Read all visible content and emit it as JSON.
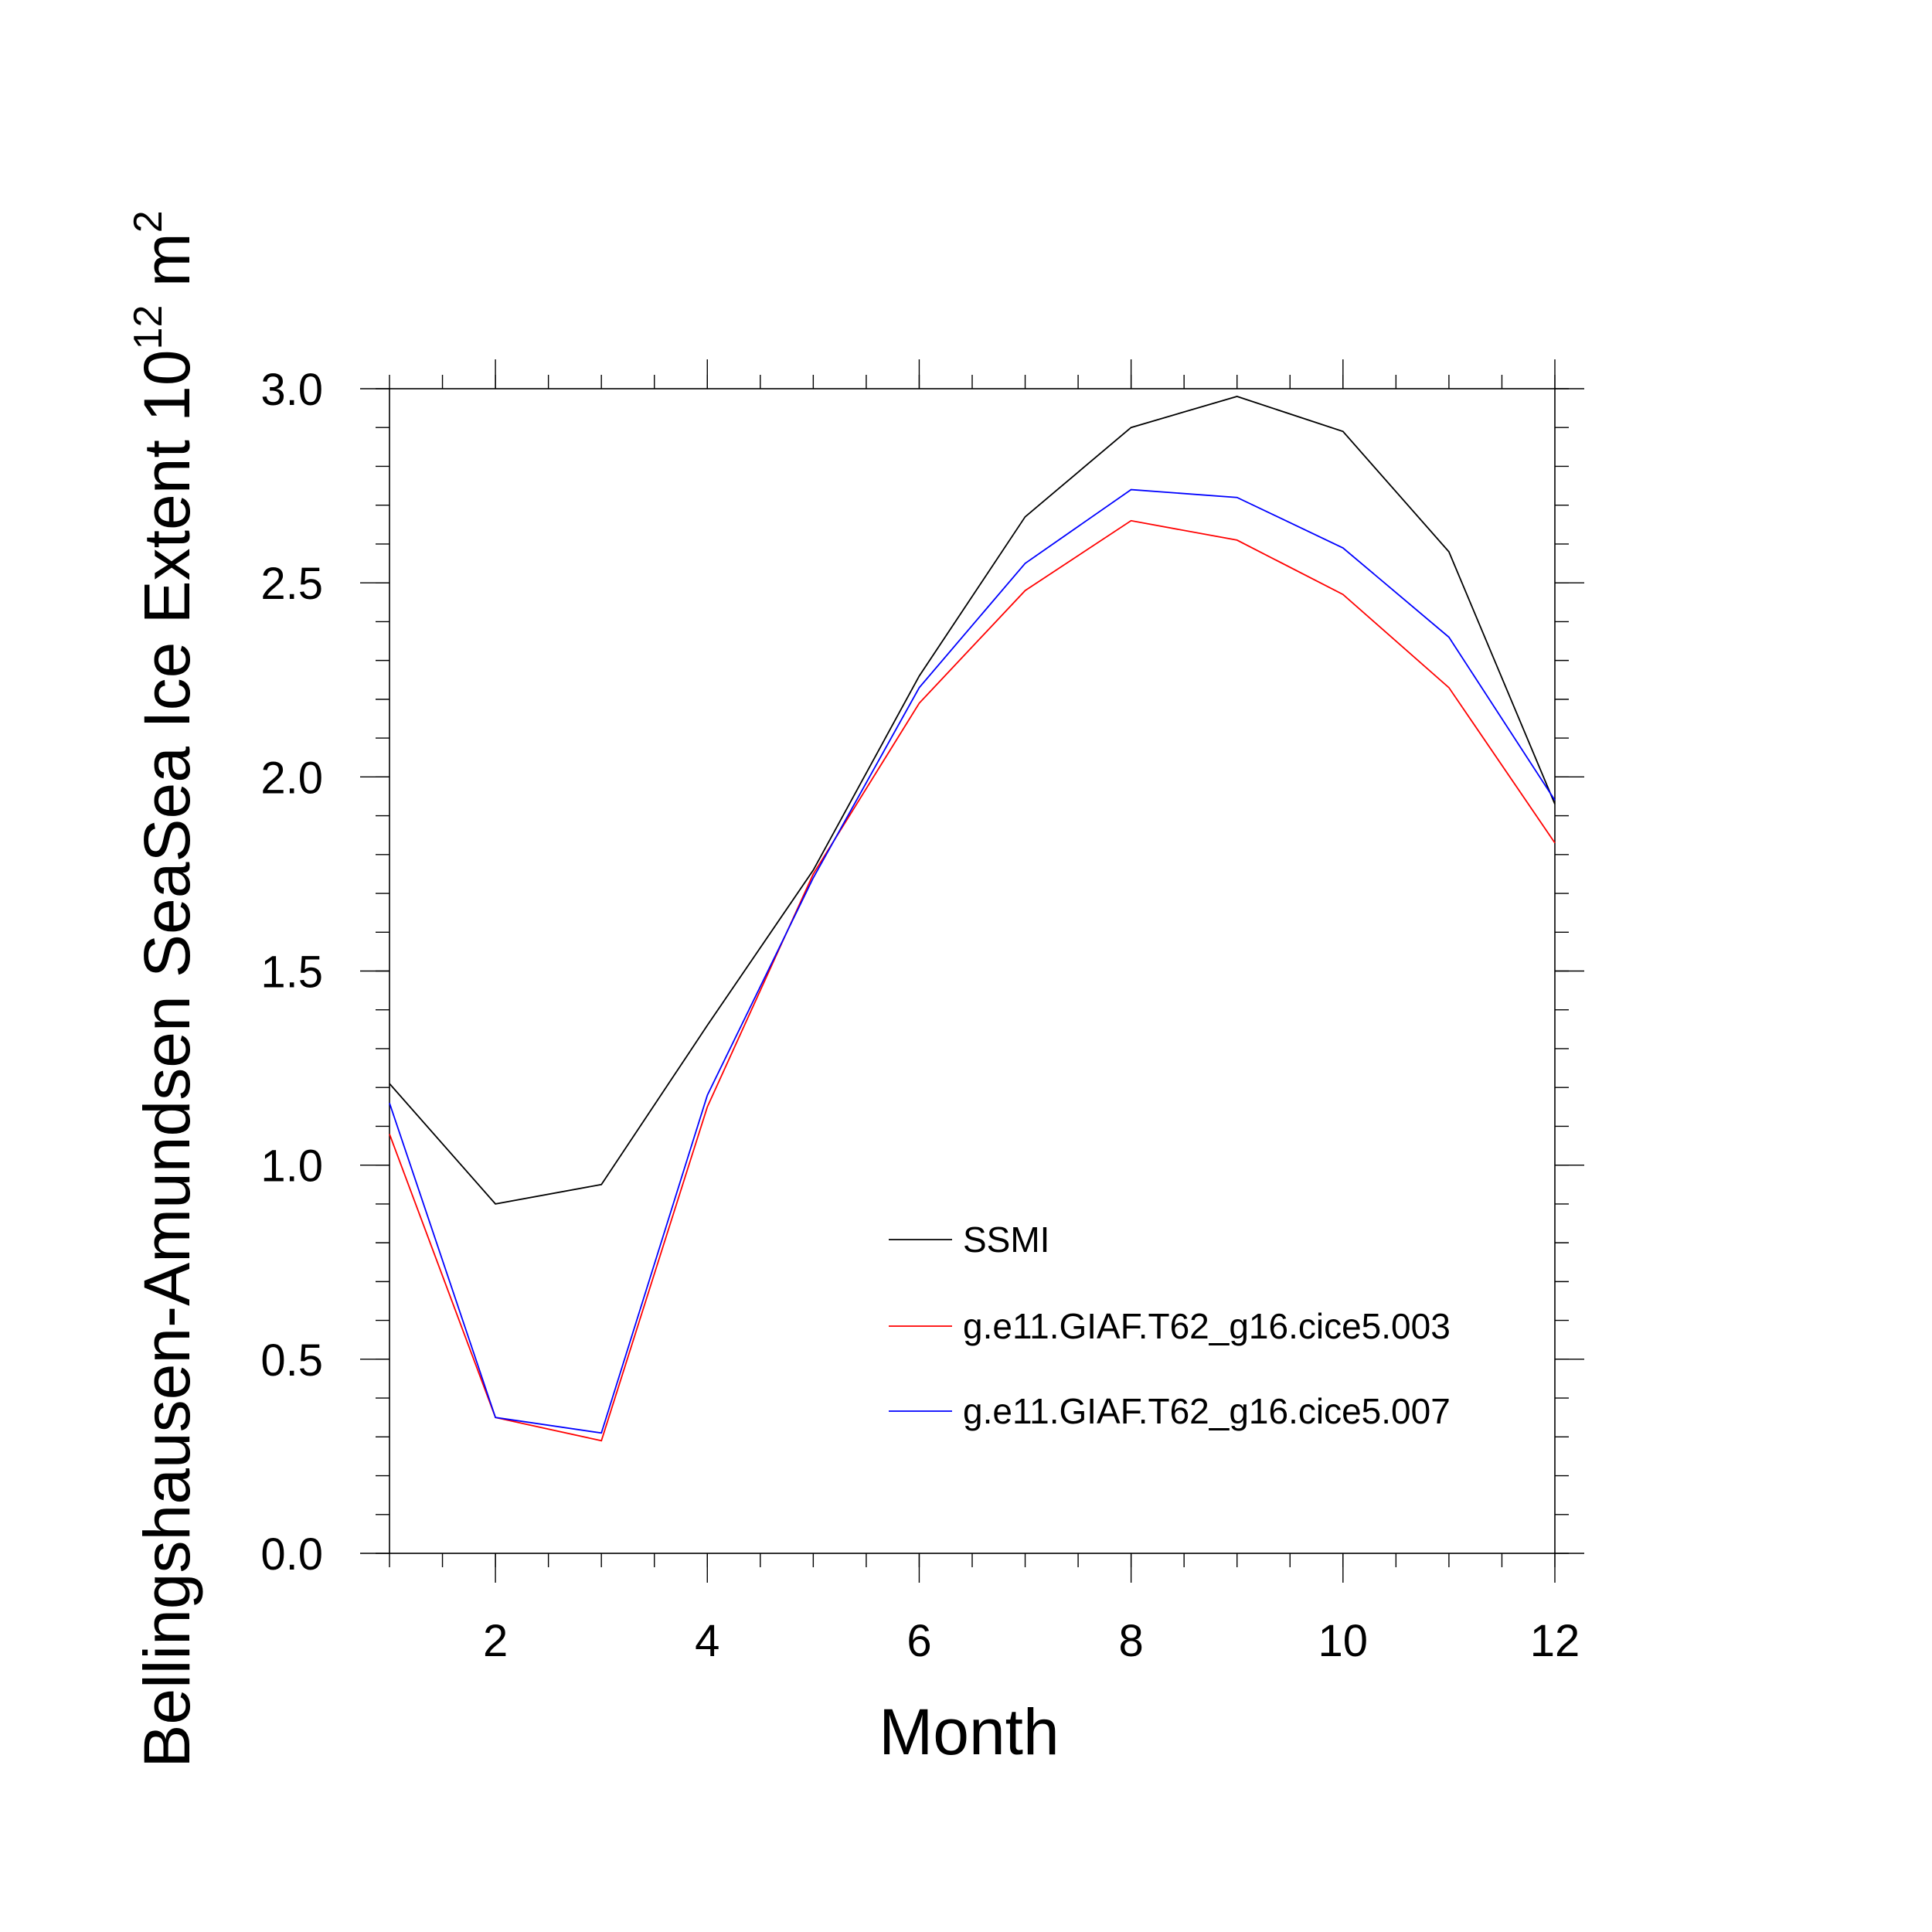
{
  "chart_data": {
    "type": "line",
    "title": "",
    "xlabel": "Month",
    "ylabel_main": "Bellingshausen-Amundsen SeaSea Ice Extent 10",
    "ylabel_sup": "12",
    "ylabel_unit": " m",
    "ylabel_unit_sup": "2",
    "xlim": [
      1,
      12
    ],
    "ylim": [
      0.0,
      3.0
    ],
    "x_ticks": [
      2,
      4,
      6,
      8,
      10,
      12
    ],
    "x_tick_labels": [
      "2",
      "4",
      "6",
      "8",
      "10",
      "12"
    ],
    "y_ticks": [
      0.0,
      0.5,
      1.0,
      1.5,
      2.0,
      2.5,
      3.0
    ],
    "y_tick_labels": [
      "0.0",
      "0.5",
      "1.0",
      "1.5",
      "2.0",
      "2.5",
      "3.0"
    ],
    "grid": false,
    "legend_position": "bottom-right",
    "x": [
      1,
      2,
      3,
      4,
      5,
      6,
      7,
      8,
      9,
      10,
      11,
      12
    ],
    "series": [
      {
        "name": "SSMI",
        "color": "#000000",
        "values": [
          1.21,
          0.9,
          0.95,
          1.36,
          1.76,
          2.26,
          2.67,
          2.9,
          2.98,
          2.89,
          2.58,
          1.93
        ]
      },
      {
        "name": "g.e11.GIAF.T62_g16.cice5.003",
        "color": "#ff0000",
        "values": [
          1.08,
          0.35,
          0.29,
          1.15,
          1.75,
          2.19,
          2.48,
          2.66,
          2.61,
          2.47,
          2.23,
          1.83
        ]
      },
      {
        "name": "g.e11.GIAF.T62_g16.cice5.007",
        "color": "#0000ff",
        "values": [
          1.16,
          0.35,
          0.31,
          1.18,
          1.74,
          2.23,
          2.55,
          2.74,
          2.72,
          2.59,
          2.36,
          1.94
        ]
      }
    ]
  }
}
